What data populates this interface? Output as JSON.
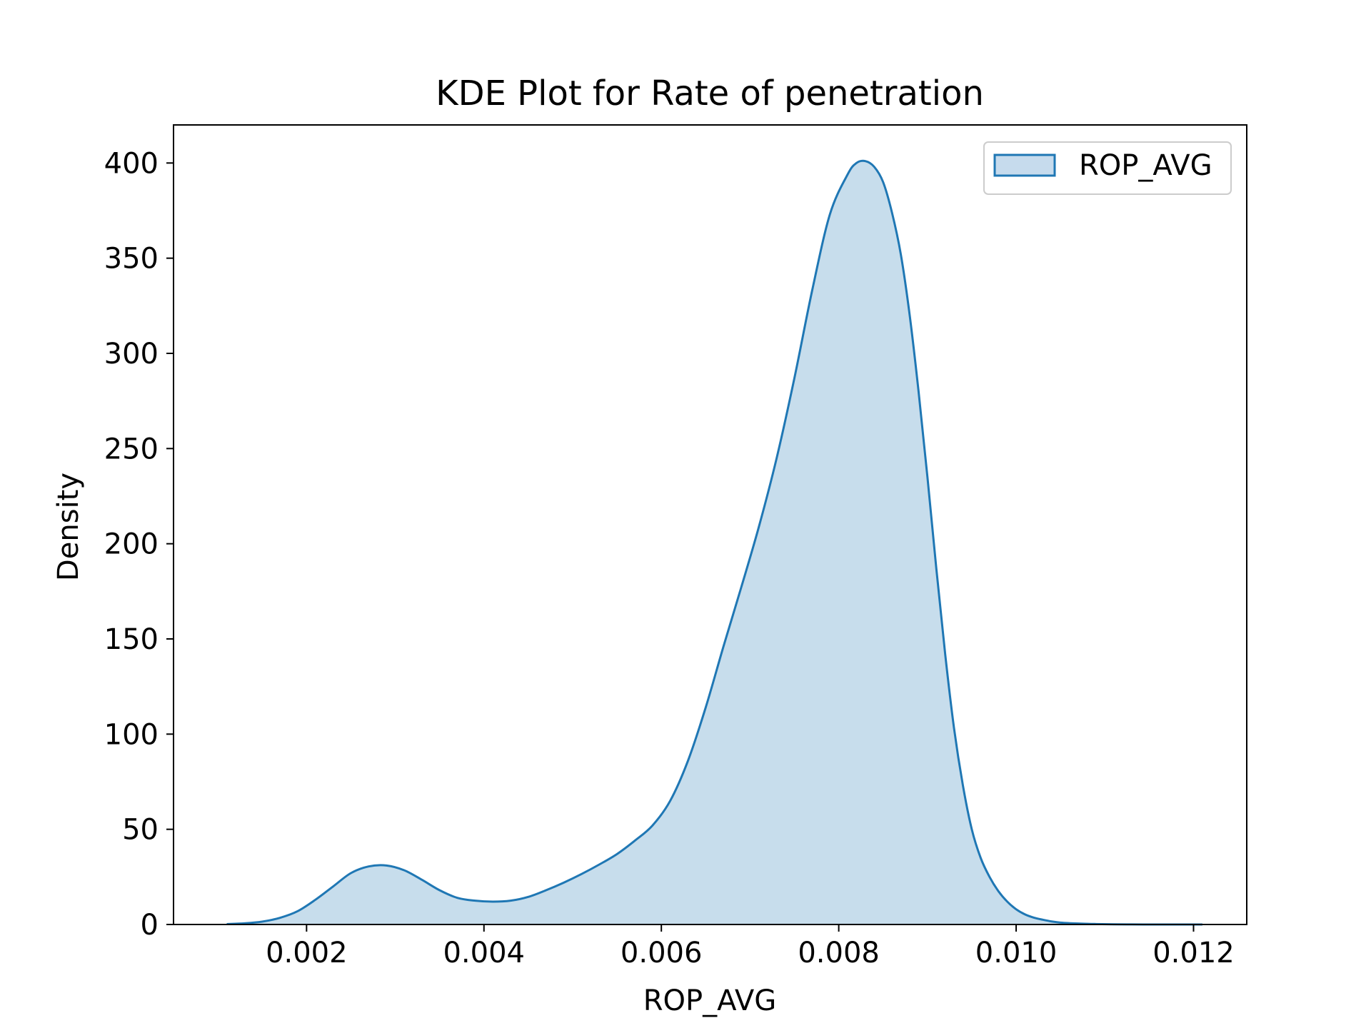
{
  "chart_data": {
    "type": "area",
    "title": "KDE Plot for Rate of penetration",
    "xlabel": "ROP_AVG",
    "ylabel": "Density",
    "xlim": [
      0.0005,
      0.0126
    ],
    "ylim": [
      0,
      420
    ],
    "x_ticks": [
      0.002,
      0.004,
      0.006,
      0.008,
      0.01,
      0.012
    ],
    "x_tick_labels": [
      "0.002",
      "0.004",
      "0.006",
      "0.008",
      "0.010",
      "0.012"
    ],
    "y_ticks": [
      0,
      50,
      100,
      150,
      200,
      250,
      300,
      350,
      400
    ],
    "y_tick_labels": [
      "0",
      "50",
      "100",
      "150",
      "200",
      "250",
      "300",
      "350",
      "400"
    ],
    "grid": false,
    "legend_position": "upper right",
    "series": [
      {
        "name": "ROP_AVG",
        "color": "#1f77b4",
        "fill_color": "#c6dbed",
        "x": [
          0.0011,
          0.0013,
          0.0015,
          0.0017,
          0.0019,
          0.0021,
          0.0023,
          0.0025,
          0.0027,
          0.0029,
          0.0031,
          0.0033,
          0.0035,
          0.0037,
          0.0039,
          0.0041,
          0.0043,
          0.0045,
          0.0047,
          0.0049,
          0.0051,
          0.0053,
          0.0055,
          0.0057,
          0.0059,
          0.0061,
          0.0063,
          0.0065,
          0.0067,
          0.0069,
          0.0071,
          0.0073,
          0.0075,
          0.0077,
          0.0079,
          0.0081,
          0.0082,
          0.0083,
          0.0084,
          0.0085,
          0.0086,
          0.0087,
          0.0088,
          0.0089,
          0.009,
          0.0091,
          0.0092,
          0.0093,
          0.0094,
          0.0095,
          0.0096,
          0.0097,
          0.0098,
          0.0099,
          0.01,
          0.0101,
          0.0102,
          0.0103,
          0.0104,
          0.0105,
          0.0107,
          0.0109,
          0.0111,
          0.0113,
          0.0115,
          0.0117,
          0.0119,
          0.0121
        ],
        "y": [
          0.2,
          0.6,
          1.5,
          3.5,
          7,
          13,
          20,
          27,
          30.5,
          31,
          28.5,
          23.5,
          18,
          14,
          12.5,
          12,
          12.5,
          14.5,
          18,
          22,
          26.5,
          31.5,
          37,
          44,
          52,
          65,
          86,
          114,
          146,
          177,
          209,
          245,
          287,
          333,
          373,
          394,
          400,
          401,
          398,
          390,
          374,
          352,
          320,
          280,
          235,
          187,
          142,
          103,
          73,
          50,
          35,
          25,
          17.5,
          12,
          8,
          5.3,
          3.6,
          2.5,
          1.6,
          1.0,
          0.5,
          0.25,
          0.1,
          0.04,
          0.01,
          0.005,
          0.002,
          0
        ]
      }
    ]
  }
}
